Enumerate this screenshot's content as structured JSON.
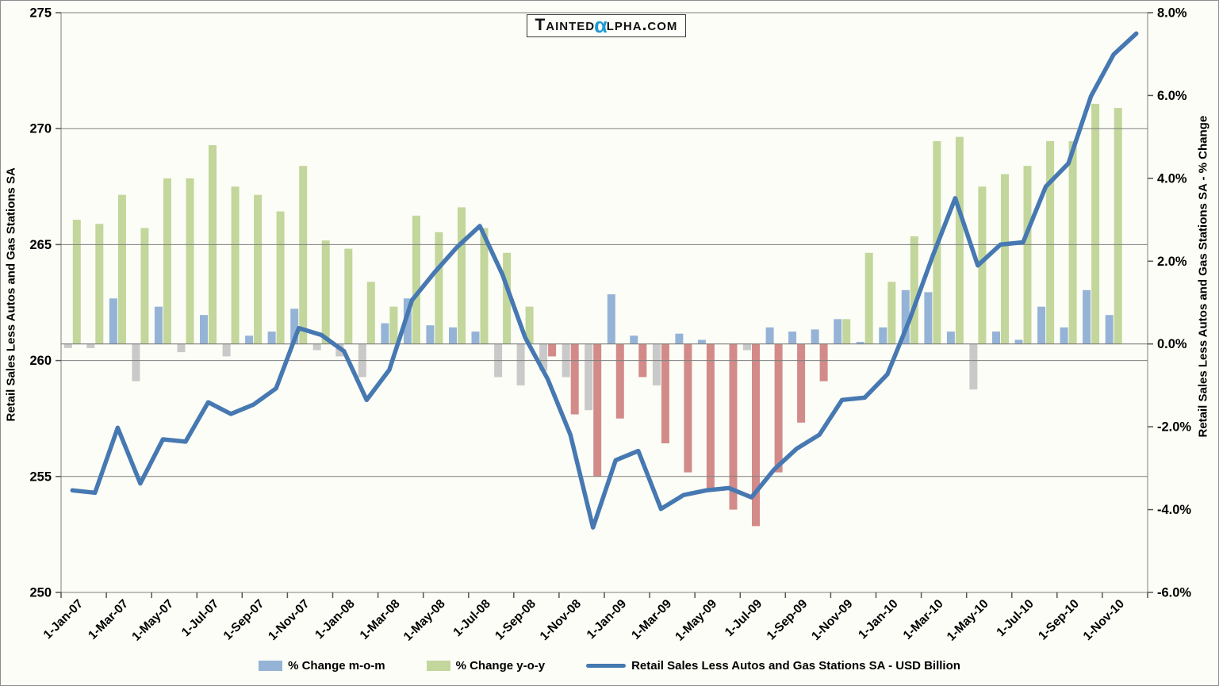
{
  "logo": {
    "prefix": "Tainted",
    "alpha": "α",
    "suffix": "lpha.com"
  },
  "axis_left": {
    "title": "Retail Sales Less Autos and Gas Stations SA",
    "ticks": [
      "275",
      "270",
      "265",
      "260",
      "255",
      "250"
    ]
  },
  "axis_right": {
    "title": "Retail Sales Less Autos and Gas Stations SA - % Change",
    "ticks": [
      "8.0%",
      "6.0%",
      "4.0%",
      "2.0%",
      "0.0%",
      "-2.0%",
      "-4.0%",
      "-6.0%"
    ]
  },
  "legend": {
    "items": [
      {
        "label": "% Change m-o-m",
        "swatch": "bar",
        "color": "#95b3d7"
      },
      {
        "label": "% Change y-o-y",
        "swatch": "bar",
        "color": "#c3d69b"
      },
      {
        "label": "Retail Sales Less Autos and Gas Stations SA - USD Billion",
        "swatch": "line",
        "color": "#4678b2"
      }
    ]
  },
  "colors": {
    "background": "#fcfdf6",
    "gridline": "#7f7f7f",
    "mom_positive": "#95b3d7",
    "mom_negative": "#c9c9c9",
    "yoy_positive": "#c3d69b",
    "yoy_negative": "#d28b89",
    "line": "#4678b2",
    "alpha_blue": "#1d9ad3"
  },
  "chart_data": {
    "type": "combo",
    "title": "TaintedAlpha.com",
    "categories": [
      "Jan-07",
      "Feb-07",
      "Mar-07",
      "Apr-07",
      "May-07",
      "Jun-07",
      "Jul-07",
      "Aug-07",
      "Sep-07",
      "Oct-07",
      "Nov-07",
      "Dec-07",
      "Jan-08",
      "Feb-08",
      "Mar-08",
      "Apr-08",
      "May-08",
      "Jun-08",
      "Jul-08",
      "Aug-08",
      "Sep-08",
      "Oct-08",
      "Nov-08",
      "Dec-08",
      "Jan-09",
      "Feb-09",
      "Mar-09",
      "Apr-09",
      "May-09",
      "Jun-09",
      "Jul-09",
      "Aug-09",
      "Sep-09",
      "Oct-09",
      "Nov-09",
      "Dec-09",
      "Jan-10",
      "Feb-10",
      "Mar-10",
      "Apr-10",
      "May-10",
      "Jun-10",
      "Jul-10",
      "Aug-10",
      "Sep-10",
      "Oct-10",
      "Nov-10",
      "Dec-10"
    ],
    "x_tick_labels": [
      "1-Jan-07",
      "1-Mar-07",
      "1-May-07",
      "1-Jul-07",
      "1-Sep-07",
      "1-Nov-07",
      "1-Jan-08",
      "1-Mar-08",
      "1-May-08",
      "1-Jul-08",
      "1-Sep-08",
      "1-Nov-08",
      "1-Jan-09",
      "1-Mar-09",
      "1-May-09",
      "1-Jul-09",
      "1-Sep-09",
      "1-Nov-09",
      "1-Jan-10",
      "1-Mar-10",
      "1-May-10",
      "1-Jul-10",
      "1-Sep-10",
      "1-Nov-10"
    ],
    "series": [
      {
        "name": "% Change m-o-m",
        "type": "bar",
        "axis": "right",
        "color_positive": "#95b3d7",
        "color_negative": "#c9c9c9",
        "values": [
          -0.1,
          -0.1,
          1.1,
          -0.9,
          0.9,
          -0.2,
          0.7,
          -0.3,
          0.2,
          0.3,
          0.85,
          -0.15,
          -0.3,
          -0.8,
          0.5,
          1.1,
          0.45,
          0.4,
          0.3,
          -0.8,
          -1.0,
          -0.65,
          -0.8,
          -1.6,
          1.2,
          0.2,
          -1.0,
          0.25,
          0.1,
          0.0,
          -0.15,
          0.4,
          0.3,
          0.35,
          0.6,
          0.05,
          0.4,
          1.3,
          1.25,
          0.3,
          -1.1,
          0.3,
          0.1,
          0.9,
          0.4,
          1.3,
          0.7,
          null
        ]
      },
      {
        "name": "% Change y-o-y",
        "type": "bar",
        "axis": "right",
        "color_positive": "#c3d69b",
        "color_negative": "#d28b89",
        "values": [
          3.0,
          2.9,
          3.6,
          2.8,
          4.0,
          4.0,
          4.8,
          3.8,
          3.6,
          3.2,
          4.3,
          2.5,
          2.3,
          1.5,
          0.9,
          3.1,
          2.7,
          3.3,
          2.8,
          2.2,
          0.9,
          -0.3,
          -1.7,
          -3.2,
          -1.8,
          -0.8,
          -2.4,
          -3.1,
          -3.5,
          -4.0,
          -4.4,
          -3.1,
          -1.9,
          -0.9,
          0.6,
          2.2,
          1.5,
          2.6,
          4.9,
          5.0,
          3.8,
          4.1,
          4.3,
          4.9,
          4.9,
          5.8,
          5.7,
          null
        ]
      },
      {
        "name": "Retail Sales Less Autos and Gas Stations SA - USD Billion",
        "type": "line",
        "axis": "left",
        "color": "#4678b2",
        "values": [
          254.4,
          254.3,
          257.1,
          254.7,
          256.6,
          256.5,
          258.2,
          257.7,
          258.1,
          258.8,
          261.4,
          261.1,
          260.4,
          258.3,
          259.6,
          262.6,
          263.8,
          264.9,
          265.8,
          263.7,
          261.0,
          259.2,
          256.8,
          252.8,
          255.7,
          256.1,
          253.6,
          254.2,
          254.4,
          254.5,
          254.1,
          255.3,
          256.2,
          256.8,
          258.3,
          258.4,
          259.4,
          261.8,
          264.5,
          267.0,
          264.1,
          265.0,
          265.1,
          267.5,
          268.5,
          271.4,
          273.2,
          274.1
        ]
      }
    ],
    "left_axis": {
      "label": "Retail Sales Less Autos and Gas Stations SA",
      "min": 250,
      "max": 275,
      "step": 5
    },
    "right_axis": {
      "label": "Retail Sales Less Autos and Gas Stations SA - % Change",
      "min": -6,
      "max": 8,
      "step": 2,
      "format": "percent"
    },
    "grid": "horizontal-left-axis",
    "legend_position": "bottom"
  }
}
